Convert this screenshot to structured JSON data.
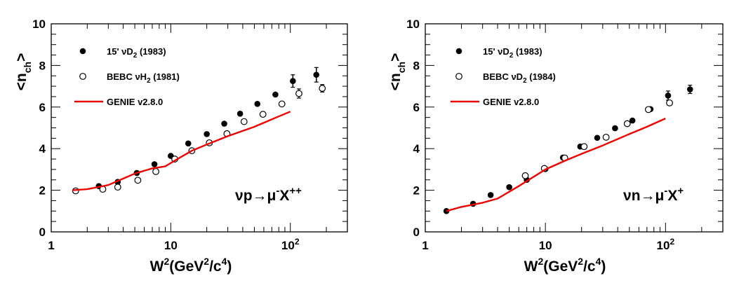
{
  "chart_data": [
    {
      "type": "scatter",
      "panel": "left",
      "xlabel": "W²(GeV²/c⁴)",
      "ylabel": "<n_ch>",
      "xscale": "log",
      "xlim": [
        1,
        300
      ],
      "ylim": [
        0,
        10
      ],
      "x_ticks": [
        "1",
        "10",
        "10²"
      ],
      "y_ticks": [
        "0",
        "2",
        "4",
        "6",
        "8",
        "10"
      ],
      "reaction_label": "νp→μ⁻X⁺⁺",
      "legend_position": "top-left",
      "series": [
        {
          "name": "15' νD₂ (1983)",
          "marker": "filled-circle",
          "x": [
            1.6,
            2.5,
            3.6,
            5.2,
            7.3,
            10.0,
            14.0,
            20.0,
            28.0,
            38.0,
            53.0,
            75.0,
            105.0,
            165.0
          ],
          "y": [
            1.97,
            2.2,
            2.4,
            2.83,
            3.25,
            3.65,
            4.25,
            4.7,
            5.2,
            5.68,
            6.15,
            6.6,
            7.25,
            7.55
          ],
          "yerr": [
            0,
            0,
            0,
            0,
            0,
            0,
            0,
            0,
            0,
            0,
            0,
            0,
            0.3,
            0.35
          ]
        },
        {
          "name": "BEBC νH₂ (1981)",
          "marker": "open-circle",
          "x": [
            1.6,
            2.7,
            3.6,
            5.3,
            7.5,
            10.8,
            15.0,
            21.0,
            29.5,
            41.0,
            59.0,
            85.0,
            118.0,
            185.0
          ],
          "y": [
            1.97,
            2.05,
            2.15,
            2.48,
            2.9,
            3.5,
            3.9,
            4.28,
            4.72,
            5.3,
            5.65,
            6.15,
            6.65,
            6.9
          ],
          "yerr": [
            0,
            0,
            0,
            0,
            0,
            0,
            0,
            0,
            0,
            0,
            0,
            0,
            0.22,
            0.18
          ]
        },
        {
          "name": "GENIE v2.8.0",
          "type": "line",
          "color": "#ee0000",
          "x": [
            1.5,
            2.0,
            3.0,
            5.0,
            7.0,
            9.0,
            11.0,
            15.0,
            20.0,
            30.0,
            50.0,
            80.0,
            100.0
          ],
          "y": [
            2.0,
            2.05,
            2.25,
            2.8,
            3.05,
            3.15,
            3.45,
            3.9,
            4.2,
            4.6,
            5.05,
            5.55,
            5.78
          ]
        }
      ]
    },
    {
      "type": "scatter",
      "panel": "right",
      "xlabel": "W²(GeV²/c⁴)",
      "ylabel": "<n_ch>",
      "xscale": "log",
      "xlim": [
        1,
        300
      ],
      "ylim": [
        0,
        10
      ],
      "x_ticks": [
        "1",
        "10",
        "10²"
      ],
      "y_ticks": [
        "0",
        "2",
        "4",
        "6",
        "8",
        "10"
      ],
      "reaction_label": "νn→μ⁻X⁺",
      "legend_position": "top-left",
      "series": [
        {
          "name": "15' νD₂ (1983)",
          "marker": "filled-circle",
          "x": [
            1.5,
            2.5,
            3.5,
            5.0,
            7.0,
            10.0,
            14.0,
            19.5,
            27.0,
            38.0,
            53.0,
            75.0,
            105.0,
            160.0
          ],
          "y": [
            1.0,
            1.35,
            1.77,
            2.15,
            2.5,
            3.02,
            3.57,
            4.1,
            4.52,
            4.98,
            5.35,
            5.9,
            6.55,
            6.85
          ],
          "yerr": [
            0,
            0,
            0,
            0,
            0,
            0,
            0,
            0,
            0,
            0,
            0,
            0,
            0.22,
            0.2
          ]
        },
        {
          "name": "BEBC νD₂ (1984)",
          "marker": "open-circle",
          "x": [
            6.8,
            9.8,
            14.5,
            21.0,
            32.0,
            48.0,
            72.0,
            108.0
          ],
          "y": [
            2.7,
            3.05,
            3.55,
            4.1,
            4.55,
            5.2,
            5.88,
            6.2
          ],
          "yerr": [
            0,
            0,
            0,
            0,
            0,
            0,
            0,
            0
          ]
        },
        {
          "name": "GENIE v2.8.0",
          "type": "line",
          "color": "#ee0000",
          "x": [
            1.5,
            2.0,
            3.0,
            4.0,
            6.0,
            8.0,
            10.0,
            15.0,
            20.0,
            30.0,
            50.0,
            70.0,
            100.0
          ],
          "y": [
            1.0,
            1.2,
            1.4,
            1.6,
            2.2,
            2.65,
            3.0,
            3.45,
            3.75,
            4.15,
            4.7,
            5.05,
            5.45
          ]
        }
      ]
    }
  ]
}
